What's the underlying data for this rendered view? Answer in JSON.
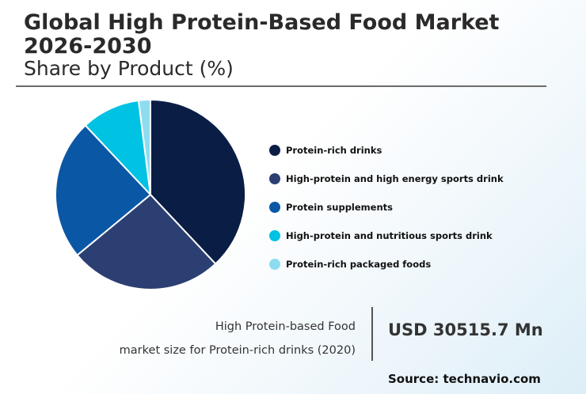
{
  "header": {
    "title": "Global High Protein-Based Food Market 2026-2030",
    "subtitle": "Share by Product (%)"
  },
  "chart_data": {
    "type": "pie",
    "title": "Global High Protein-Based Food Market 2026-2030",
    "subtitle": "Share by Product (%)",
    "legend_position": "right",
    "categories": [
      "Protein-rich drinks",
      "High-protein and high energy sports drink",
      "Protein supplements",
      "High-protein and nutritious sports drink",
      "Protein-rich packaged foods"
    ],
    "values": [
      38,
      26,
      24,
      10,
      2
    ],
    "colors": [
      "#0a1d45",
      "#2b3f72",
      "#0a57a6",
      "#00c2e3",
      "#8edcf0"
    ]
  },
  "footer": {
    "caption_line1": "High Protein-based Food",
    "caption_line2": "market size for Protein-rich drinks (2020)",
    "value": "USD 30515.7 Mn",
    "source": "Source: technavio.com"
  }
}
